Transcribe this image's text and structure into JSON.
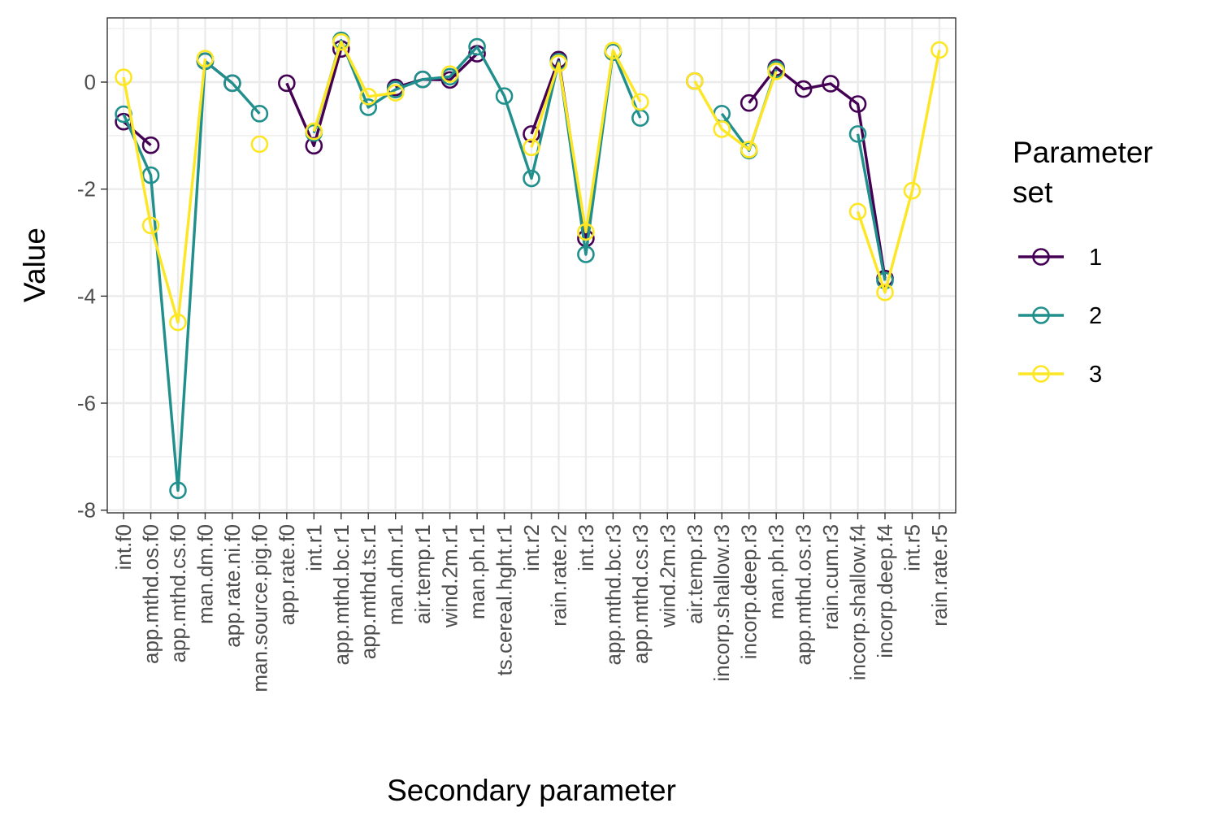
{
  "chart_data": {
    "type": "line",
    "xlabel": "Secondary parameter",
    "ylabel": "Value",
    "ylim": [
      -8.05,
      1.2
    ],
    "yticks": [
      0,
      -2,
      -4,
      -6,
      -8
    ],
    "yticks_text": [
      "0",
      "-2",
      "-4",
      "-6",
      "-8"
    ],
    "grid": true,
    "legend_title_lines": [
      "Parameter",
      "set"
    ],
    "legend_position": "right",
    "categories": [
      "int.f0",
      "app.mthd.os.f0",
      "app.mthd.cs.f0",
      "man.dm.f0",
      "app.rate.ni.f0",
      "man.source.pig.f0",
      "app.rate.f0",
      "int.r1",
      "app.mthd.bc.r1",
      "app.mthd.ts.r1",
      "man.dm.r1",
      "air.temp.r1",
      "wind.2m.r1",
      "man.ph.r1",
      "ts.cereal.hght.r1",
      "int.r2",
      "rain.rate.r2",
      "int.r3",
      "app.mthd.bc.r3",
      "app.mthd.cs.r3",
      "wind.2m.r3",
      "air.temp.r3",
      "incorp.shallow.r3",
      "incorp.deep.r3",
      "man.ph.r3",
      "app.mthd.os.r3",
      "rain.cum.r3",
      "incorp.shallow.f4",
      "incorp.deep.f4",
      "int.r5",
      "rain.rate.r5"
    ],
    "series": [
      {
        "name": "1",
        "color": "#440154",
        "values": [
          -0.74,
          -1.18,
          null,
          0.39,
          -0.02,
          null,
          -0.02,
          -1.19,
          0.62,
          null,
          -0.1,
          0.05,
          0.04,
          0.53,
          null,
          -0.97,
          0.42,
          -2.92,
          0.56,
          null,
          null,
          0.02,
          null,
          -0.39,
          0.27,
          -0.13,
          -0.03,
          -0.41,
          -3.67,
          null,
          null
        ]
      },
      {
        "name": "2",
        "color": "#21908C",
        "values": [
          -0.6,
          -1.74,
          -7.63,
          0.39,
          -0.02,
          -0.59,
          null,
          -0.95,
          0.78,
          -0.47,
          -0.14,
          0.05,
          0.1,
          0.66,
          -0.26,
          -1.8,
          0.38,
          -3.22,
          0.56,
          -0.67,
          null,
          null,
          -0.59,
          -1.28,
          0.24,
          null,
          null,
          -0.97,
          -3.71,
          null,
          null
        ]
      },
      {
        "name": "3",
        "color": "#FDE725",
        "values": [
          0.09,
          -2.68,
          -4.49,
          0.44,
          null,
          -1.16,
          null,
          -0.92,
          0.75,
          -0.27,
          -0.2,
          null,
          0.15,
          null,
          null,
          -1.22,
          0.35,
          -2.8,
          0.59,
          -0.37,
          null,
          0.02,
          -0.88,
          -1.26,
          0.2,
          null,
          null,
          -2.42,
          -3.93,
          -2.03,
          0.6
        ]
      }
    ]
  }
}
